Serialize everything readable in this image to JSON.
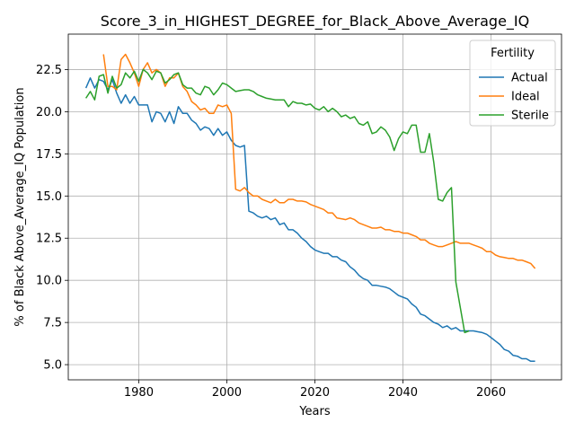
{
  "chart_data": {
    "type": "line",
    "title": "Score_3_in_HIGHEST_DEGREE_for_Black_Above_Average_IQ",
    "xlabel": "Years",
    "ylabel": "% of Black Above_Average_IQ Population",
    "xlim": [
      1964,
      2076
    ],
    "ylim": [
      4.1,
      24.6
    ],
    "xticks": [
      1980,
      2000,
      2020,
      2040,
      2060
    ],
    "yticks": [
      5.0,
      7.5,
      10.0,
      12.5,
      15.0,
      17.5,
      20.0,
      22.5
    ],
    "xtick_labels": [
      "1980",
      "2000",
      "2020",
      "2040",
      "2060"
    ],
    "ytick_labels": [
      "5.0",
      "7.5",
      "10.0",
      "12.5",
      "15.0",
      "17.5",
      "20.0",
      "22.5"
    ],
    "grid": true,
    "legend": {
      "title": "Fertility",
      "placement": "upper-right"
    },
    "series": [
      {
        "name": "Actual",
        "color": "#1f77b4",
        "x": [
          1968,
          1969,
          1970,
          1971,
          1972,
          1973,
          1974,
          1975,
          1976,
          1977,
          1978,
          1979,
          1980,
          1981,
          1982,
          1983,
          1984,
          1985,
          1986,
          1987,
          1988,
          1989,
          1990,
          1991,
          1992,
          1993,
          1994,
          1995,
          1996,
          1997,
          1998,
          1999,
          2000,
          2001,
          2002,
          2003,
          2004,
          2005,
          2006,
          2007,
          2008,
          2009,
          2010,
          2011,
          2012,
          2013,
          2014,
          2015,
          2016,
          2017,
          2018,
          2019,
          2020,
          2021,
          2022,
          2023,
          2024,
          2025,
          2026,
          2027,
          2028,
          2029,
          2030,
          2031,
          2032,
          2033,
          2034,
          2035,
          2036,
          2037,
          2038,
          2039,
          2040,
          2041,
          2042,
          2043,
          2044,
          2045,
          2046,
          2047,
          2048,
          2049,
          2050,
          2051,
          2052,
          2053,
          2054,
          2055,
          2056,
          2057,
          2058,
          2059,
          2060,
          2061,
          2062,
          2063,
          2064,
          2065,
          2066,
          2067,
          2068,
          2069,
          2070
        ],
        "y": [
          21.4,
          22.0,
          21.4,
          21.9,
          21.8,
          21.3,
          21.9,
          21.1,
          20.5,
          21.0,
          20.5,
          20.9,
          20.4,
          20.4,
          20.4,
          19.4,
          20.0,
          19.9,
          19.4,
          20.0,
          19.3,
          20.3,
          19.9,
          19.9,
          19.5,
          19.3,
          18.9,
          19.1,
          19.0,
          18.6,
          19.0,
          18.6,
          18.8,
          18.3,
          18.0,
          17.9,
          18.0,
          14.1,
          14.0,
          13.8,
          13.7,
          13.8,
          13.6,
          13.7,
          13.3,
          13.4,
          13.0,
          13.0,
          12.8,
          12.5,
          12.3,
          12.0,
          11.8,
          11.7,
          11.6,
          11.6,
          11.4,
          11.4,
          11.2,
          11.1,
          10.8,
          10.6,
          10.3,
          10.1,
          10.0,
          9.7,
          9.7,
          9.65,
          9.6,
          9.5,
          9.3,
          9.1,
          9.0,
          8.9,
          8.6,
          8.4,
          8.0,
          7.9,
          7.7,
          7.5,
          7.4,
          7.2,
          7.3,
          7.1,
          7.2,
          7.0,
          7.0,
          7.0,
          7.0,
          6.95,
          6.9,
          6.8,
          6.6,
          6.4,
          6.2,
          5.9,
          5.8,
          5.55,
          5.5,
          5.35,
          5.35,
          5.2,
          5.2
        ]
      },
      {
        "name": "Ideal",
        "color": "#ff7f0e",
        "x": [
          1972,
          1973,
          1974,
          1975,
          1976,
          1977,
          1978,
          1979,
          1980,
          1981,
          1982,
          1983,
          1984,
          1985,
          1986,
          1987,
          1988,
          1989,
          1990,
          1991,
          1992,
          1993,
          1994,
          1995,
          1996,
          1997,
          1998,
          1999,
          2000,
          2001,
          2002,
          2003,
          2004,
          2005,
          2006,
          2007,
          2008,
          2009,
          2010,
          2011,
          2012,
          2013,
          2014,
          2015,
          2016,
          2017,
          2018,
          2019,
          2020,
          2021,
          2022,
          2023,
          2024,
          2025,
          2026,
          2027,
          2028,
          2029,
          2030,
          2031,
          2032,
          2033,
          2034,
          2035,
          2036,
          2037,
          2038,
          2039,
          2040,
          2041,
          2042,
          2043,
          2044,
          2045,
          2046,
          2047,
          2048,
          2049,
          2050,
          2051,
          2052,
          2053,
          2054,
          2055,
          2056,
          2057,
          2058,
          2059,
          2060,
          2061,
          2062,
          2063,
          2064,
          2065,
          2066,
          2067,
          2068,
          2069,
          2070
        ],
        "y": [
          23.4,
          21.5,
          21.5,
          21.3,
          23.1,
          23.4,
          22.9,
          22.3,
          21.5,
          22.5,
          22.9,
          22.3,
          22.5,
          22.3,
          21.5,
          22.0,
          22.0,
          22.3,
          21.5,
          21.2,
          20.6,
          20.4,
          20.1,
          20.2,
          19.9,
          19.9,
          20.4,
          20.3,
          20.4,
          19.9,
          15.4,
          15.3,
          15.5,
          15.2,
          15.0,
          15.0,
          14.8,
          14.7,
          14.6,
          14.8,
          14.6,
          14.6,
          14.8,
          14.8,
          14.7,
          14.7,
          14.65,
          14.5,
          14.4,
          14.3,
          14.2,
          14.0,
          14.0,
          13.7,
          13.65,
          13.6,
          13.7,
          13.6,
          13.4,
          13.3,
          13.2,
          13.1,
          13.1,
          13.15,
          13.0,
          13.0,
          12.9,
          12.9,
          12.8,
          12.8,
          12.7,
          12.6,
          12.4,
          12.4,
          12.2,
          12.1,
          12.0,
          12.0,
          12.1,
          12.2,
          12.3,
          12.2,
          12.2,
          12.2,
          12.1,
          12.0,
          11.9,
          11.7,
          11.7,
          11.5,
          11.4,
          11.35,
          11.3,
          11.3,
          11.2,
          11.2,
          11.1,
          11.0,
          10.7
        ]
      },
      {
        "name": "Sterile",
        "color": "#2ca02c",
        "x": [
          1968,
          1969,
          1970,
          1971,
          1972,
          1973,
          1974,
          1975,
          1976,
          1977,
          1978,
          1979,
          1980,
          1981,
          1982,
          1983,
          1984,
          1985,
          1986,
          1987,
          1988,
          1989,
          1990,
          1991,
          1992,
          1993,
          1994,
          1995,
          1996,
          1997,
          1998,
          1999,
          2000,
          2001,
          2002,
          2003,
          2004,
          2005,
          2006,
          2007,
          2008,
          2009,
          2010,
          2011,
          2012,
          2013,
          2014,
          2015,
          2016,
          2017,
          2018,
          2019,
          2020,
          2021,
          2022,
          2023,
          2024,
          2025,
          2026,
          2027,
          2028,
          2029,
          2030,
          2031,
          2032,
          2033,
          2034,
          2035,
          2036,
          2037,
          2038,
          2039,
          2040,
          2041,
          2042,
          2043,
          2044,
          2045,
          2046,
          2047,
          2048,
          2049,
          2050,
          2051,
          2052,
          2053,
          2054,
          2055
        ],
        "y": [
          20.8,
          21.2,
          20.7,
          22.1,
          22.2,
          21.1,
          22.1,
          21.4,
          21.6,
          22.3,
          22.0,
          22.4,
          21.8,
          22.5,
          22.3,
          21.9,
          22.4,
          22.3,
          21.7,
          21.9,
          22.2,
          22.3,
          21.6,
          21.4,
          21.4,
          21.1,
          21.0,
          21.5,
          21.4,
          21.0,
          21.3,
          21.7,
          21.6,
          21.4,
          21.2,
          21.25,
          21.3,
          21.3,
          21.2,
          21.0,
          20.9,
          20.8,
          20.75,
          20.7,
          20.7,
          20.7,
          20.3,
          20.6,
          20.5,
          20.5,
          20.4,
          20.45,
          20.2,
          20.1,
          20.3,
          20.0,
          20.2,
          20.0,
          19.7,
          19.8,
          19.6,
          19.7,
          19.3,
          19.2,
          19.4,
          18.7,
          18.8,
          19.1,
          18.9,
          18.5,
          17.7,
          18.4,
          18.8,
          18.7,
          19.2,
          19.2,
          17.6,
          17.6,
          18.7,
          17.0,
          14.8,
          14.7,
          15.2,
          15.5,
          9.9,
          8.4,
          6.9,
          7.0
        ]
      }
    ]
  }
}
